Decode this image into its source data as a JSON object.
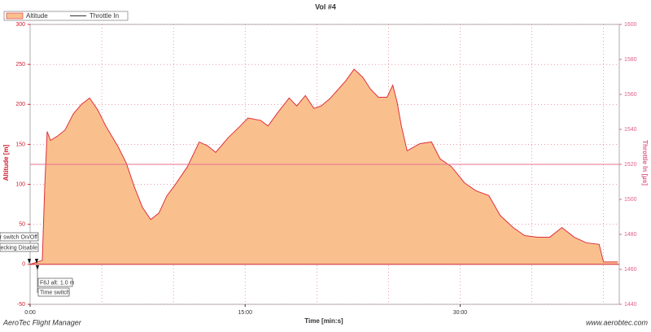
{
  "chart_data": {
    "type": "line",
    "title": "Vol #4",
    "ylabel": "Altitude [m]",
    "y2label": "Throttle In [µs]",
    "xlabel": "Time [min:s]",
    "footer_left": "AeroTec Flight Manager",
    "footer_right": "www.aerobtec.com",
    "annotations": [
      "r switch On/Off",
      "ecking Disable",
      "F6J alt: 1.0 m",
      "Time switch"
    ],
    "xlim": [
      0,
      41.1
    ],
    "ylim": [
      -50,
      300
    ],
    "y2lim": [
      1440,
      1600
    ],
    "xticks": [
      {
        "value": 0,
        "label": "0:00"
      },
      {
        "value": 15,
        "label": "15:00"
      },
      {
        "value": 30,
        "label": "30:00"
      }
    ],
    "xgrid": [
      5,
      10,
      15,
      20,
      25,
      30,
      35,
      40
    ],
    "yticks": [
      -50,
      0,
      50,
      100,
      150,
      200,
      250,
      300
    ],
    "y2ticks": [
      1440,
      1460,
      1480,
      1500,
      1520,
      1540,
      1560,
      1580,
      1600
    ],
    "grid": true,
    "legend": "top-left",
    "series": [
      {
        "name": "Altitude",
        "color": "#e0303a",
        "fill": "#f9c08e",
        "x": [
          0,
          0.85,
          1.02,
          1.19,
          1.42,
          1.88,
          2.44,
          3.01,
          3.58,
          4.15,
          4.72,
          5.28,
          6.14,
          6.7,
          7.27,
          7.84,
          8.41,
          8.98,
          9.55,
          10.1,
          10.97,
          11.8,
          12.4,
          12.95,
          13.8,
          14.66,
          15.2,
          16.08,
          16.6,
          17.2,
          18.07,
          18.6,
          19.2,
          19.8,
          20.3,
          20.9,
          21.5,
          22.0,
          22.6,
          23.2,
          23.75,
          24.3,
          24.9,
          25.3,
          25.6,
          25.9,
          26.3,
          27.2,
          28.0,
          28.6,
          29.4,
          30.3,
          31.1,
          32.0,
          32.8,
          33.7,
          34.5,
          35.4,
          36.25,
          37.1,
          37.95,
          38.8,
          39.7,
          40.0,
          41.0
        ],
        "values": [
          0,
          5,
          97,
          166,
          155,
          160,
          168,
          188,
          200,
          208,
          193,
          173,
          147,
          127,
          97,
          71,
          56,
          64,
          86,
          99,
          122,
          153,
          148,
          140,
          158,
          173,
          183,
          180,
          173,
          188,
          208,
          198,
          211,
          195,
          198,
          207,
          219,
          229,
          244,
          234,
          219,
          209,
          209,
          224,
          203,
          173,
          142,
          151,
          153,
          132,
          122,
          102,
          92,
          86,
          61,
          46,
          36,
          34,
          34,
          46,
          34,
          27,
          25,
          3,
          3
        ]
      },
      {
        "name": "Throttle In",
        "color": "#e8708e",
        "axis": "y2",
        "x": [
          0,
          41.1
        ],
        "values": [
          1520,
          1520
        ]
      }
    ]
  }
}
